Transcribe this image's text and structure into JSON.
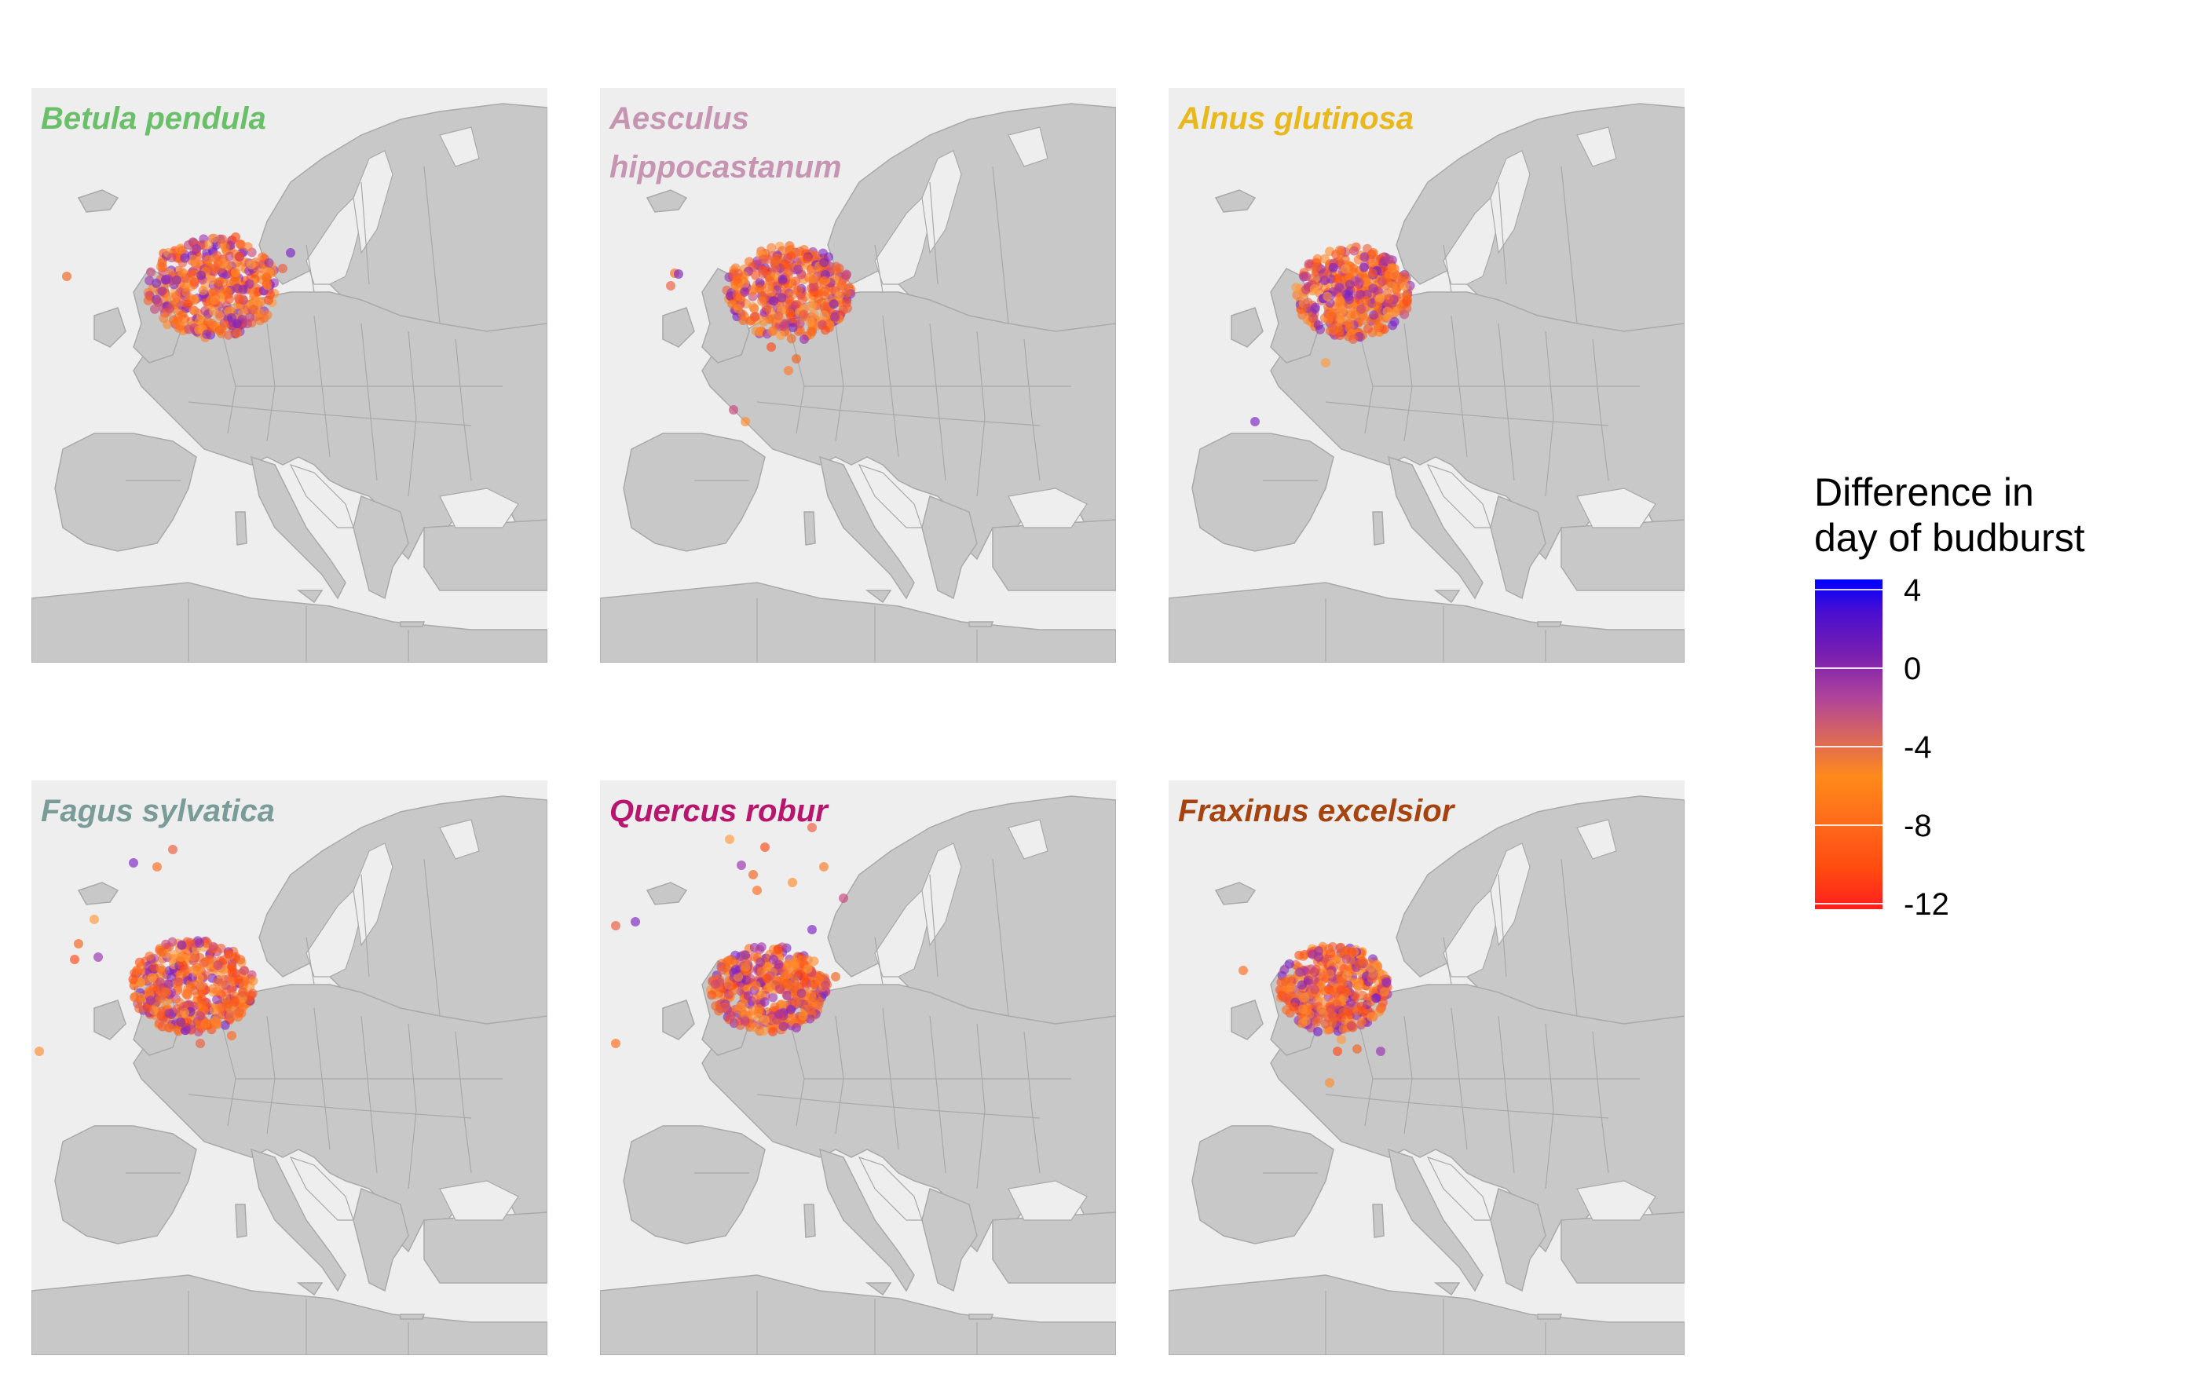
{
  "panels": [
    {
      "id": "betula",
      "title": "Betula pendula",
      "color": "#6abf69"
    },
    {
      "id": "aesculus",
      "title": "Aesculus\nhippocastanum",
      "color": "#c595b1"
    },
    {
      "id": "alnus",
      "title": "Alnus glutinosa",
      "color": "#e8b81c"
    },
    {
      "id": "fagus",
      "title": "Fagus sylvatica",
      "color": "#7a9c98"
    },
    {
      "id": "quercus",
      "title": "Quercus robur",
      "color": "#b8156e"
    },
    {
      "id": "fraxinus",
      "title": "Fraxinus excelsior",
      "color": "#a6430f"
    }
  ],
  "legend": {
    "title": "Difference in\nday of budburst",
    "ticks": [
      "4",
      "0",
      "-4",
      "-8",
      "-12"
    ],
    "range": [
      -12,
      4
    ],
    "colors": {
      "high": "#0000ff",
      "mid": "#8c2db0",
      "low": "#ff1e1e",
      "midlow": "#ff8c1a"
    }
  },
  "map": {
    "sea": "#eeeeee",
    "land": "#c8c8c8",
    "border": "#a9a9a9"
  }
}
